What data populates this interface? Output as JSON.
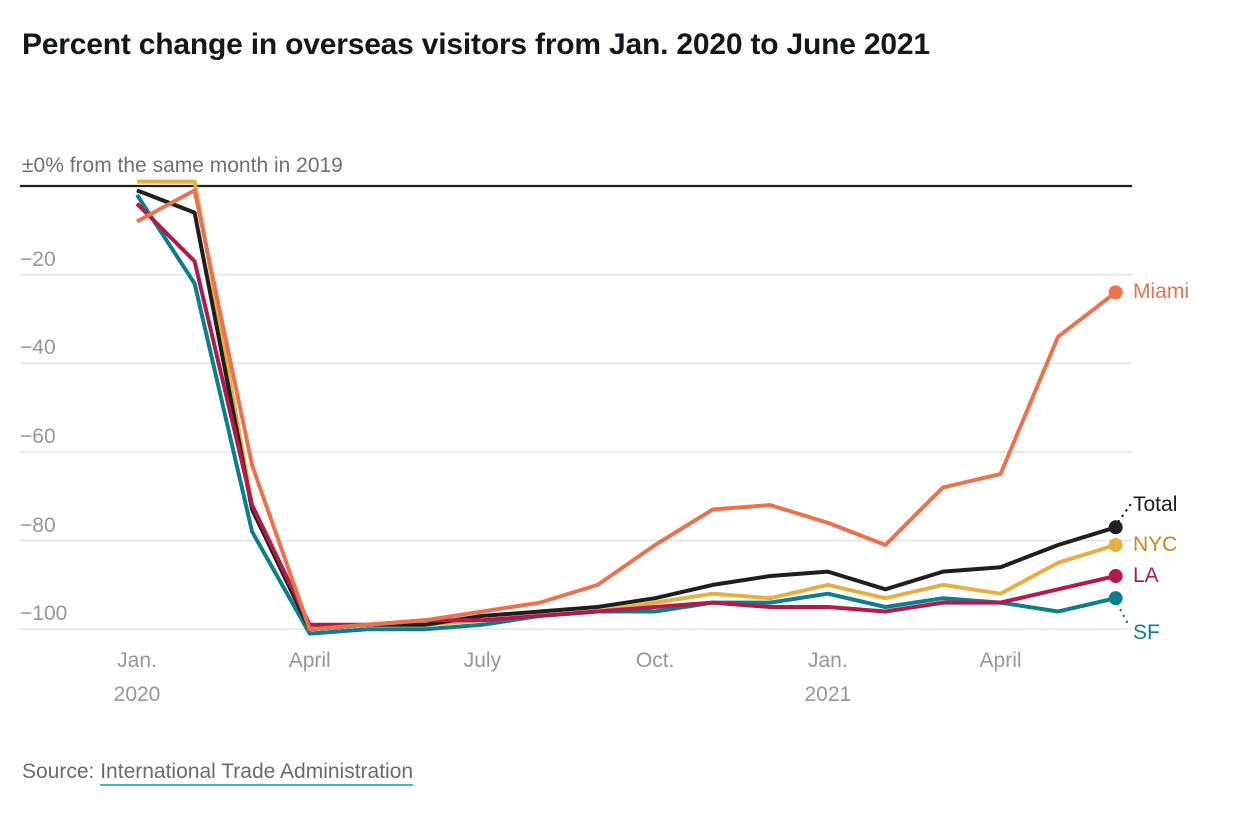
{
  "title": "Percent change in overseas visitors from Jan. 2020 to June 2021",
  "chart_data": {
    "type": "line",
    "baseline_label": "±0% from the same month in 2019",
    "x": [
      "Jan. 2020",
      "Feb. 2020",
      "March 2020",
      "April 2020",
      "May 2020",
      "June 2020",
      "July 2020",
      "Aug. 2020",
      "Sep. 2020",
      "Oct. 2020",
      "Nov. 2020",
      "Dec. 2020",
      "Jan. 2021",
      "Feb. 2021",
      "March 2021",
      "April 2021",
      "May 2021",
      "June 2021"
    ],
    "series": [
      {
        "name": "Miami",
        "color": "#e8734e",
        "label_color": "#e8734e",
        "values": [
          -8,
          -1,
          -63,
          -100,
          -99,
          -98,
          -96,
          -94,
          -90,
          -81,
          -73,
          -72,
          -76,
          -81,
          -68,
          -65,
          -34,
          -24
        ]
      },
      {
        "name": "Total",
        "color": "#211e20",
        "label_color": "#1c1c1c",
        "values": [
          -1,
          -6,
          -73,
          -100,
          -99,
          -99,
          -97,
          -96,
          -95,
          -93,
          -90,
          -88,
          -87,
          -91,
          -87,
          -86,
          -81,
          -77
        ]
      },
      {
        "name": "NYC",
        "color": "#e6af41",
        "label_color": "#be8c1e",
        "values": [
          1,
          1,
          -72,
          -100,
          -99,
          -99,
          -98,
          -97,
          -96,
          -94,
          -92,
          -93,
          -90,
          -93,
          -90,
          -92,
          -85,
          -81
        ]
      },
      {
        "name": "LA",
        "color": "#b11a4a",
        "label_color": "#b11a4a",
        "values": [
          -4,
          -17,
          -72,
          -99,
          -99,
          -98,
          -98,
          -97,
          -96,
          -95,
          -94,
          -95,
          -95,
          -96,
          -94,
          -94,
          -91,
          -88
        ]
      },
      {
        "name": "SF",
        "color": "#0d7f8c",
        "label_color": "#0d7f8c",
        "values": [
          -2,
          -22,
          -78,
          -101,
          -100,
          -100,
          -99,
          -97,
          -96,
          -96,
          -94,
          -94,
          -92,
          -95,
          -93,
          -94,
          -96,
          -93
        ]
      }
    ],
    "y_ticks": [
      {
        "value": -20,
        "label": "−20"
      },
      {
        "value": -40,
        "label": "−40"
      },
      {
        "value": -60,
        "label": "−60"
      },
      {
        "value": -80,
        "label": "−80"
      },
      {
        "value": -100,
        "label": "−100"
      }
    ],
    "x_ticks": [
      {
        "month_index": 0,
        "label": "Jan.",
        "sublabel": "2020"
      },
      {
        "month_index": 3,
        "label": "April",
        "sublabel": ""
      },
      {
        "month_index": 6,
        "label": "July",
        "sublabel": ""
      },
      {
        "month_index": 9,
        "label": "Oct.",
        "sublabel": ""
      },
      {
        "month_index": 12,
        "label": "Jan.",
        "sublabel": "2021"
      },
      {
        "month_index": 15,
        "label": "April",
        "sublabel": ""
      }
    ],
    "ylim": [
      -104,
      2
    ],
    "grid": true,
    "legend_position": "right-end-labels"
  },
  "source": {
    "prefix": "Source: ",
    "link_text": "International Trade Administration"
  },
  "colors": {
    "grid": "#e4e4e4",
    "baseline": "#1f1f1f",
    "tick_text": "#979797",
    "accent_underline": "#3fb8c1"
  }
}
